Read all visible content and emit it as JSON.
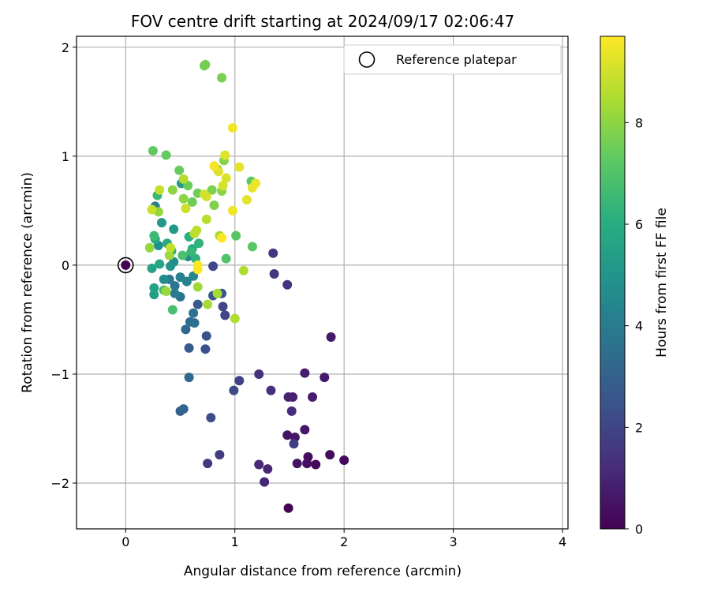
{
  "chart_data": {
    "type": "scatter",
    "title": "FOV centre drift starting at 2024/09/17 02:06:47",
    "xlabel": "Angular distance from reference (arcmin)",
    "ylabel": "Rotation from reference (arcmin)",
    "xlim": [
      -0.45,
      4.05
    ],
    "ylim": [
      -2.42,
      2.1
    ],
    "xticks": [
      0,
      1,
      2,
      3,
      4
    ],
    "yticks": [
      -2,
      -1,
      0,
      1,
      2
    ],
    "grid": true,
    "legend": {
      "position": "top-right",
      "entries": [
        "Reference platepar"
      ]
    },
    "reference_point": {
      "x": 0,
      "y": 0
    },
    "colorbar": {
      "label": "Hours from first FF file",
      "colormap": "viridis",
      "range": [
        0,
        9.7
      ],
      "ticks": [
        0,
        2,
        4,
        6,
        8
      ]
    },
    "colors": {
      "marker_edge": "#000000",
      "grid": "#b0b0b0"
    },
    "points": [
      {
        "x": 0.0,
        "y": 0.0,
        "h": 0.0
      },
      {
        "x": 1.49,
        "y": -2.23,
        "h": 0.1
      },
      {
        "x": 1.74,
        "y": -1.83,
        "h": 0.2
      },
      {
        "x": 2.0,
        "y": -1.79,
        "h": 0.25
      },
      {
        "x": 1.87,
        "y": -1.74,
        "h": 0.3
      },
      {
        "x": 1.67,
        "y": -1.76,
        "h": 0.35
      },
      {
        "x": 1.66,
        "y": -1.82,
        "h": 0.4
      },
      {
        "x": 1.57,
        "y": -1.82,
        "h": 0.45
      },
      {
        "x": 1.48,
        "y": -1.56,
        "h": 0.5
      },
      {
        "x": 1.55,
        "y": -1.58,
        "h": 0.55
      },
      {
        "x": 1.64,
        "y": -1.51,
        "h": 0.6
      },
      {
        "x": 1.88,
        "y": -0.66,
        "h": 0.65
      },
      {
        "x": 1.82,
        "y": -1.03,
        "h": 0.7
      },
      {
        "x": 1.71,
        "y": -1.21,
        "h": 0.75
      },
      {
        "x": 1.64,
        "y": -0.99,
        "h": 0.8
      },
      {
        "x": 1.53,
        "y": -1.21,
        "h": 0.85
      },
      {
        "x": 1.49,
        "y": -1.21,
        "h": 0.9
      },
      {
        "x": 1.27,
        "y": -1.99,
        "h": 1.0
      },
      {
        "x": 1.3,
        "y": -1.87,
        "h": 1.05
      },
      {
        "x": 1.22,
        "y": -1.83,
        "h": 1.15
      },
      {
        "x": 1.52,
        "y": -1.34,
        "h": 1.2
      },
      {
        "x": 1.33,
        "y": -1.15,
        "h": 1.3
      },
      {
        "x": 1.22,
        "y": -1.0,
        "h": 1.35
      },
      {
        "x": 1.48,
        "y": -0.18,
        "h": 1.4
      },
      {
        "x": 1.36,
        "y": -0.08,
        "h": 1.5
      },
      {
        "x": 1.35,
        "y": 0.11,
        "h": 1.55
      },
      {
        "x": 0.75,
        "y": -1.82,
        "h": 1.6
      },
      {
        "x": 0.86,
        "y": -1.74,
        "h": 1.7
      },
      {
        "x": 1.54,
        "y": -1.64,
        "h": 1.8
      },
      {
        "x": 1.04,
        "y": -1.06,
        "h": 1.9
      },
      {
        "x": 0.91,
        "y": -0.46,
        "h": 2.0
      },
      {
        "x": 0.89,
        "y": -0.38,
        "h": 2.05
      },
      {
        "x": 0.8,
        "y": -0.01,
        "h": 2.1
      },
      {
        "x": 0.99,
        "y": -1.15,
        "h": 2.2
      },
      {
        "x": 0.78,
        "y": -1.4,
        "h": 2.3
      },
      {
        "x": 0.73,
        "y": -0.77,
        "h": 2.4
      },
      {
        "x": 0.74,
        "y": -0.65,
        "h": 2.5
      },
      {
        "x": 0.88,
        "y": -0.26,
        "h": 2.55
      },
      {
        "x": 0.8,
        "y": -0.28,
        "h": 2.6
      },
      {
        "x": 0.66,
        "y": -0.36,
        "h": 2.7
      },
      {
        "x": 0.58,
        "y": -0.76,
        "h": 2.8
      },
      {
        "x": 0.5,
        "y": -1.34,
        "h": 3.0
      },
      {
        "x": 0.53,
        "y": -1.32,
        "h": 3.1
      },
      {
        "x": 0.58,
        "y": -1.03,
        "h": 3.2
      },
      {
        "x": 0.55,
        "y": -0.59,
        "h": 3.3
      },
      {
        "x": 0.59,
        "y": -0.52,
        "h": 3.4
      },
      {
        "x": 0.63,
        "y": -0.53,
        "h": 3.5
      },
      {
        "x": 0.62,
        "y": -0.44,
        "h": 3.6
      },
      {
        "x": 0.5,
        "y": -0.29,
        "h": 3.7
      },
      {
        "x": 0.45,
        "y": -0.19,
        "h": 3.8
      },
      {
        "x": 0.4,
        "y": -0.13,
        "h": 3.9
      },
      {
        "x": 0.45,
        "y": -0.26,
        "h": 4.0
      },
      {
        "x": 0.27,
        "y": 0.54,
        "h": 4.1
      },
      {
        "x": 0.5,
        "y": -0.11,
        "h": 4.2
      },
      {
        "x": 0.56,
        "y": -0.15,
        "h": 4.3
      },
      {
        "x": 0.62,
        "y": -0.1,
        "h": 4.4
      },
      {
        "x": 0.57,
        "y": 0.08,
        "h": 4.5
      },
      {
        "x": 0.44,
        "y": 0.03,
        "h": 4.6
      },
      {
        "x": 0.35,
        "y": -0.13,
        "h": 4.7
      },
      {
        "x": 0.3,
        "y": 0.18,
        "h": 4.8
      },
      {
        "x": 0.41,
        "y": -0.01,
        "h": 5.0
      },
      {
        "x": 0.33,
        "y": 0.39,
        "h": 5.1
      },
      {
        "x": 0.44,
        "y": 0.33,
        "h": 5.2
      },
      {
        "x": 0.51,
        "y": 0.75,
        "h": 5.3
      },
      {
        "x": 0.26,
        "y": -0.27,
        "h": 5.4
      },
      {
        "x": 0.26,
        "y": -0.21,
        "h": 5.5
      },
      {
        "x": 0.24,
        "y": -0.03,
        "h": 5.6
      },
      {
        "x": 0.31,
        "y": 0.01,
        "h": 5.7
      },
      {
        "x": 0.27,
        "y": 0.24,
        "h": 5.8
      },
      {
        "x": 0.38,
        "y": 0.2,
        "h": 5.9
      },
      {
        "x": 0.42,
        "y": 0.13,
        "h": 6.0
      },
      {
        "x": 0.61,
        "y": 0.15,
        "h": 6.05
      },
      {
        "x": 0.58,
        "y": 0.26,
        "h": 6.1
      },
      {
        "x": 0.64,
        "y": 0.06,
        "h": 6.2
      },
      {
        "x": 0.67,
        "y": 0.2,
        "h": 6.3
      },
      {
        "x": 0.6,
        "y": 0.12,
        "h": 6.4
      },
      {
        "x": 0.29,
        "y": 0.64,
        "h": 6.5
      },
      {
        "x": 0.26,
        "y": 0.27,
        "h": 6.6
      },
      {
        "x": 0.35,
        "y": -0.23,
        "h": 6.7
      },
      {
        "x": 0.43,
        "y": -0.41,
        "h": 6.8
      },
      {
        "x": 0.52,
        "y": 0.09,
        "h": 6.9
      },
      {
        "x": 0.92,
        "y": 0.06,
        "h": 7.0
      },
      {
        "x": 1.01,
        "y": 0.27,
        "h": 7.1
      },
      {
        "x": 1.16,
        "y": 0.17,
        "h": 7.15
      },
      {
        "x": 1.15,
        "y": 0.77,
        "h": 7.2
      },
      {
        "x": 0.25,
        "y": 1.05,
        "h": 7.3
      },
      {
        "x": 0.37,
        "y": 1.01,
        "h": 7.35
      },
      {
        "x": 0.49,
        "y": 0.87,
        "h": 7.4
      },
      {
        "x": 0.57,
        "y": 0.73,
        "h": 7.45
      },
      {
        "x": 0.61,
        "y": 0.58,
        "h": 7.5
      },
      {
        "x": 0.66,
        "y": 0.66,
        "h": 7.55
      },
      {
        "x": 0.72,
        "y": 1.83,
        "h": 7.6
      },
      {
        "x": 0.73,
        "y": 1.84,
        "h": 7.65
      },
      {
        "x": 0.88,
        "y": 1.72,
        "h": 7.7
      },
      {
        "x": 0.79,
        "y": 0.69,
        "h": 7.75
      },
      {
        "x": 0.81,
        "y": 0.55,
        "h": 7.8
      },
      {
        "x": 0.84,
        "y": 0.88,
        "h": 7.85
      },
      {
        "x": 0.9,
        "y": 0.96,
        "h": 7.9
      },
      {
        "x": 0.88,
        "y": 0.68,
        "h": 7.95
      },
      {
        "x": 0.43,
        "y": 0.69,
        "h": 8.0
      },
      {
        "x": 0.53,
        "y": 0.61,
        "h": 8.05
      },
      {
        "x": 0.3,
        "y": 0.49,
        "h": 8.1
      },
      {
        "x": 0.22,
        "y": 0.16,
        "h": 8.15
      },
      {
        "x": 0.37,
        "y": -0.24,
        "h": 8.2
      },
      {
        "x": 0.4,
        "y": 0.09,
        "h": 8.25
      },
      {
        "x": 0.66,
        "y": -0.2,
        "h": 8.3
      },
      {
        "x": 0.75,
        "y": -0.36,
        "h": 8.35
      },
      {
        "x": 0.84,
        "y": -0.26,
        "h": 8.4
      },
      {
        "x": 0.86,
        "y": 0.27,
        "h": 8.45
      },
      {
        "x": 1.08,
        "y": -0.05,
        "h": 8.5
      },
      {
        "x": 1.0,
        "y": -0.49,
        "h": 8.55
      },
      {
        "x": 0.53,
        "y": 0.79,
        "h": 8.6
      },
      {
        "x": 0.74,
        "y": 0.42,
        "h": 8.65
      },
      {
        "x": 0.65,
        "y": 0.32,
        "h": 8.7
      },
      {
        "x": 0.63,
        "y": 0.29,
        "h": 8.75
      },
      {
        "x": 0.41,
        "y": 0.16,
        "h": 8.8
      },
      {
        "x": 0.31,
        "y": 0.69,
        "h": 8.85
      },
      {
        "x": 0.24,
        "y": 0.51,
        "h": 8.9
      },
      {
        "x": 0.55,
        "y": 0.52,
        "h": 8.95
      },
      {
        "x": 0.72,
        "y": 0.65,
        "h": 9.0
      },
      {
        "x": 0.74,
        "y": 0.63,
        "h": 9.05
      },
      {
        "x": 0.89,
        "y": 0.73,
        "h": 9.1
      },
      {
        "x": 0.92,
        "y": 0.8,
        "h": 9.15
      },
      {
        "x": 0.85,
        "y": 0.86,
        "h": 9.2
      },
      {
        "x": 0.91,
        "y": 1.01,
        "h": 9.25
      },
      {
        "x": 1.04,
        "y": 0.9,
        "h": 9.3
      },
      {
        "x": 1.11,
        "y": 0.6,
        "h": 9.35
      },
      {
        "x": 1.16,
        "y": 0.71,
        "h": 9.4
      },
      {
        "x": 1.19,
        "y": 0.75,
        "h": 9.45
      },
      {
        "x": 0.98,
        "y": 0.5,
        "h": 9.5
      },
      {
        "x": 0.98,
        "y": 1.26,
        "h": 9.55
      },
      {
        "x": 0.81,
        "y": 0.91,
        "h": 9.6
      },
      {
        "x": 0.66,
        "y": 0.0,
        "h": 9.65
      },
      {
        "x": 0.66,
        "y": -0.04,
        "h": 9.68
      },
      {
        "x": 0.88,
        "y": 0.25,
        "h": 9.7
      }
    ]
  }
}
